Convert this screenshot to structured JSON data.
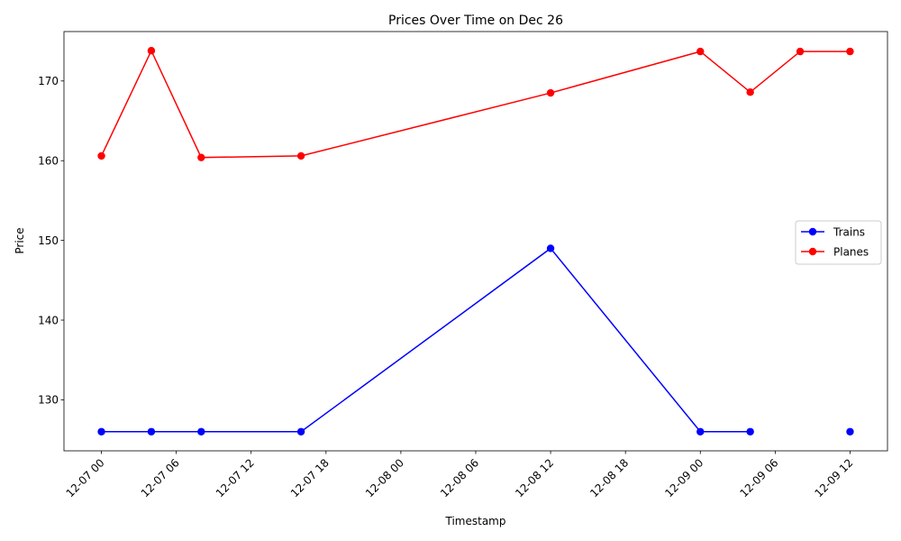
{
  "chart_data": {
    "type": "line",
    "title": "Prices Over Time on Dec 26",
    "xlabel": "Timestamp",
    "ylabel": "Price",
    "x_ticks": [
      "12-07 00",
      "12-07 06",
      "12-07 12",
      "12-07 18",
      "12-08 00",
      "12-08 06",
      "12-08 12",
      "12-08 18",
      "12-09 00",
      "12-09 06",
      "12-09 12"
    ],
    "y_ticks": [
      130,
      140,
      150,
      160,
      170
    ],
    "xlim_hours": [
      -3,
      63
    ],
    "ylim": [
      123.6,
      176.2
    ],
    "grid": false,
    "legend_position": "center-right",
    "series": [
      {
        "name": "Trains",
        "color": "#0000ff",
        "points": [
          {
            "x": "12-07 00:00",
            "y": 126.0
          },
          {
            "x": "12-07 04:00",
            "y": 126.0
          },
          {
            "x": "12-07 08:00",
            "y": 126.0
          },
          {
            "x": "12-07 16:00",
            "y": 126.0
          },
          {
            "x": "12-08 12:00",
            "y": 149.0
          },
          {
            "x": "12-09 00:00",
            "y": 126.0
          },
          {
            "x": "12-09 04:00",
            "y": 126.0
          },
          {
            "x": "12-09 12:00",
            "y": 126.0
          }
        ]
      },
      {
        "name": "Planes",
        "color": "#ff0000",
        "points": [
          {
            "x": "12-07 00:00",
            "y": 160.6
          },
          {
            "x": "12-07 04:00",
            "y": 173.8
          },
          {
            "x": "12-07 08:00",
            "y": 160.4
          },
          {
            "x": "12-07 16:00",
            "y": 160.6
          },
          {
            "x": "12-08 12:00",
            "y": 168.5
          },
          {
            "x": "12-09 00:00",
            "y": 173.7
          },
          {
            "x": "12-09 04:00",
            "y": 168.6
          },
          {
            "x": "12-09 08:00",
            "y": 173.7
          },
          {
            "x": "12-09 12:00",
            "y": 173.7
          }
        ]
      }
    ]
  }
}
